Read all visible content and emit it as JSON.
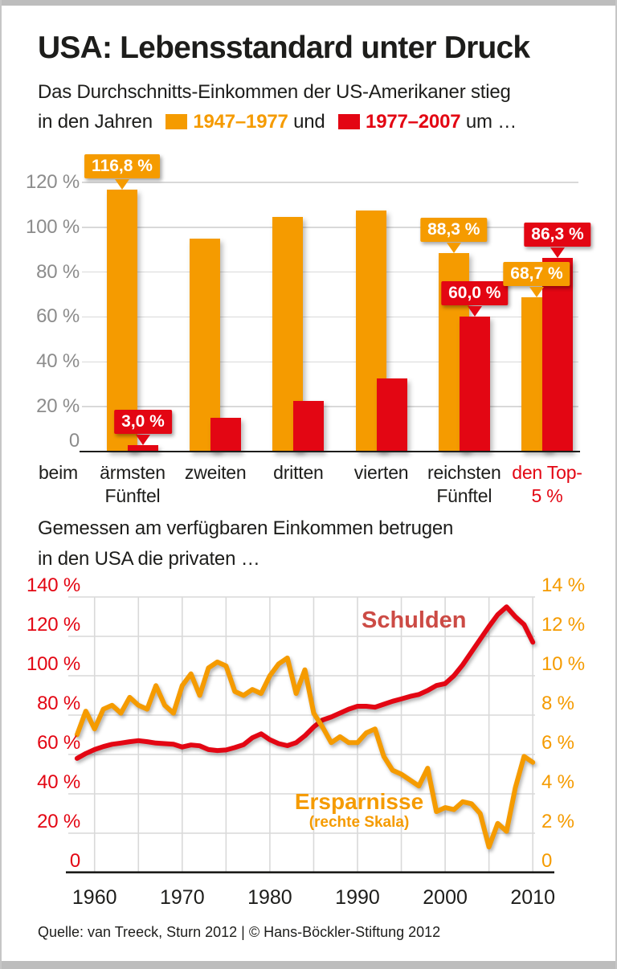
{
  "colors": {
    "orange": "#F59B00",
    "red": "#E30613",
    "schulden_text_red": "#CC4B45",
    "axis_gray": "#8C8C8C",
    "grid_gray": "#D9D9D9",
    "text_black": "#1D1D1B"
  },
  "header": {
    "title": "USA: Lebensstandard unter Druck",
    "subtitle_line1": "Das Durchschnitts-Einkommen der US-Amerikaner stieg",
    "subtitle_line2_lead": "in den Jahren",
    "legend_1": "1947–1977",
    "subtitle_and": "und",
    "legend_2": "1977–2007",
    "subtitle_tail": "um …"
  },
  "section2": {
    "line1": "Gemessen am verfügbaren Einkommen betrugen",
    "line2": "in den USA die privaten …"
  },
  "source": {
    "text": "Quelle: van Treeck, Sturn 2012 | © Hans-Böckler-Stiftung 2012"
  },
  "chart_data": [
    {
      "type": "bar",
      "axis_intro_label": "beim",
      "categories": [
        [
          "ärmsten",
          "Fünftel"
        ],
        [
          "zweiten"
        ],
        [
          "dritten"
        ],
        [
          "vierten"
        ],
        [
          "reichsten",
          "Fünftel"
        ],
        [
          "den Top-",
          "5 %"
        ]
      ],
      "category_colors": [
        "#1D1D1B",
        "#1D1D1B",
        "#1D1D1B",
        "#1D1D1B",
        "#1D1D1B",
        "#E30613"
      ],
      "series": [
        {
          "name": "1947–1977",
          "color": "#F59B00",
          "values": [
            116.8,
            94.9,
            104.5,
            107.5,
            88.3,
            68.7
          ]
        },
        {
          "name": "1977–2007",
          "color": "#E30613",
          "values": [
            3.0,
            15.0,
            22.5,
            32.5,
            60.0,
            86.3
          ]
        }
      ],
      "callouts": [
        {
          "series": 0,
          "cat": 0,
          "text": "116,8 %"
        },
        {
          "series": 1,
          "cat": 0,
          "text": "3,0 %"
        },
        {
          "series": 0,
          "cat": 4,
          "text": "88,3 %"
        },
        {
          "series": 1,
          "cat": 4,
          "text": "60,0 %"
        },
        {
          "series": 0,
          "cat": 5,
          "text": "68,7 %"
        },
        {
          "series": 1,
          "cat": 5,
          "text": "86,3 %"
        }
      ],
      "ylim": [
        0,
        120
      ],
      "grid": true,
      "yticks": [
        {
          "v": 120,
          "label": "120 %"
        },
        {
          "v": 100,
          "label": "100 %"
        },
        {
          "v": 80,
          "label": "80 %"
        },
        {
          "v": 60,
          "label": "60 %"
        },
        {
          "v": 40,
          "label": "40 %"
        },
        {
          "v": 20,
          "label": "20 %"
        },
        {
          "v": 0,
          "label": "0"
        }
      ]
    },
    {
      "type": "line",
      "x_start": 1958,
      "x_end": 2010,
      "x_tick_labels": [
        "1960",
        "1970",
        "1980",
        "1990",
        "2000",
        "2010"
      ],
      "x_gridline_step_years": 5,
      "grid": true,
      "left_axis": {
        "color": "#E30613",
        "lim": [
          0,
          140
        ],
        "ticks": [
          {
            "v": 140,
            "label": "140 %"
          },
          {
            "v": 120,
            "label": "120 %"
          },
          {
            "v": 100,
            "label": "100 %"
          },
          {
            "v": 80,
            "label": "80 %"
          },
          {
            "v": 60,
            "label": "60 %"
          },
          {
            "v": 40,
            "label": "40 %"
          },
          {
            "v": 20,
            "label": "20 %"
          },
          {
            "v": 0,
            "label": "0"
          }
        ]
      },
      "right_axis": {
        "color": "#F59B00",
        "lim": [
          0,
          14
        ],
        "ticks": [
          {
            "v": 14,
            "label": "14 %"
          },
          {
            "v": 12,
            "label": "12 %"
          },
          {
            "v": 10,
            "label": "10 %"
          },
          {
            "v": 8,
            "label": "8 %"
          },
          {
            "v": 6,
            "label": "6 %"
          },
          {
            "v": 4,
            "label": "4 %"
          },
          {
            "v": 2,
            "label": "2 %"
          },
          {
            "v": 0,
            "label": "0"
          }
        ]
      },
      "series": [
        {
          "name": "Schulden",
          "axis": "left",
          "color": "#E30613",
          "values": [
            58,
            60.5,
            62.5,
            64,
            65.2,
            65.8,
            66.5,
            67,
            66.5,
            65.8,
            65.5,
            65.2,
            63.8,
            64.8,
            64.4,
            62.5,
            62,
            62.3,
            63.5,
            65,
            68.5,
            70.5,
            67.5,
            65.5,
            64.5,
            66,
            69.5,
            74,
            77.5,
            79,
            81,
            83,
            84.5,
            84.5,
            84,
            85.5,
            87,
            88.2,
            89.5,
            90.5,
            92.5,
            95,
            96,
            100,
            105.5,
            112,
            118.5,
            125,
            131,
            135,
            130,
            126,
            117
          ]
        },
        {
          "name": "Ersparnisse",
          "axis": "right",
          "color": "#F59B00",
          "values": [
            7,
            8.2,
            7.3,
            8.3,
            8.5,
            8.1,
            8.9,
            8.5,
            8.3,
            9.5,
            8.5,
            8.1,
            9.5,
            10.1,
            9,
            10.4,
            10.7,
            10.5,
            9.2,
            9,
            9.3,
            9.1,
            10,
            10.6,
            10.9,
            9.1,
            10.3,
            8.1,
            7.4,
            6.6,
            6.9,
            6.6,
            6.6,
            7.1,
            7.3,
            5.9,
            5.2,
            5,
            4.7,
            4.4,
            5.3,
            3.1,
            3.3,
            3.2,
            3.6,
            3.5,
            3,
            1.3,
            2.5,
            2.1,
            4.3,
            5.9,
            5.6
          ]
        }
      ],
      "annotations": [
        {
          "text": "Schulden",
          "color": "#CC4B45"
        },
        {
          "text": "Ersparnisse",
          "color": "#F59B00"
        },
        {
          "text": "(rechte Skala)",
          "color": "#F59B00"
        }
      ]
    }
  ]
}
